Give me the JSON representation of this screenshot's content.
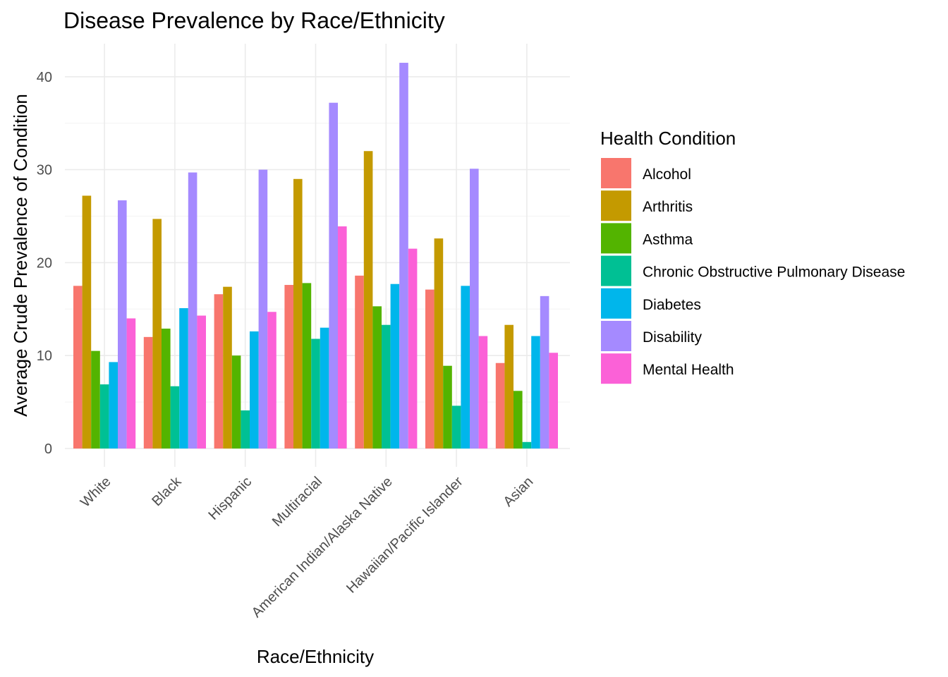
{
  "chart_data": {
    "type": "bar",
    "title": "Disease Prevalence by Race/Ethnicity",
    "xlabel": "Race/Ethnicity",
    "ylabel": "Average Crude Prevalence of Condition",
    "ylim": [
      0,
      43
    ],
    "yticks": [
      0,
      10,
      20,
      30,
      40
    ],
    "grid": true,
    "legend": {
      "title": "Health Condition",
      "position": "right"
    },
    "categories": [
      "White",
      "Black",
      "Hispanic",
      "Multiracial",
      "American Indian/Alaska Native",
      "Hawaiian/Pacific Islander",
      "Asian"
    ],
    "series": [
      {
        "name": "Alcohol",
        "color": "#F8766D",
        "values": [
          17.5,
          12.0,
          16.6,
          17.6,
          18.6,
          17.1,
          9.2
        ]
      },
      {
        "name": "Arthritis",
        "color": "#C49A00",
        "values": [
          27.2,
          24.7,
          17.4,
          29.0,
          32.0,
          22.6,
          13.3
        ]
      },
      {
        "name": "Asthma",
        "color": "#53B400",
        "values": [
          10.5,
          12.9,
          10.0,
          17.8,
          15.3,
          8.9,
          6.2
        ]
      },
      {
        "name": "Chronic Obstructive Pulmonary Disease",
        "color": "#00C094",
        "values": [
          6.9,
          6.7,
          4.1,
          11.8,
          13.3,
          4.6,
          0.7
        ]
      },
      {
        "name": "Diabetes",
        "color": "#00B6EB",
        "values": [
          9.3,
          15.1,
          12.6,
          13.0,
          17.7,
          17.5,
          12.1
        ]
      },
      {
        "name": "Disability",
        "color": "#A58AFF",
        "values": [
          26.7,
          29.7,
          30.0,
          37.2,
          41.5,
          30.1,
          16.4
        ]
      },
      {
        "name": "Mental Health",
        "color": "#FB61D7",
        "values": [
          14.0,
          14.3,
          14.7,
          23.9,
          21.5,
          12.1,
          10.3
        ]
      }
    ]
  }
}
